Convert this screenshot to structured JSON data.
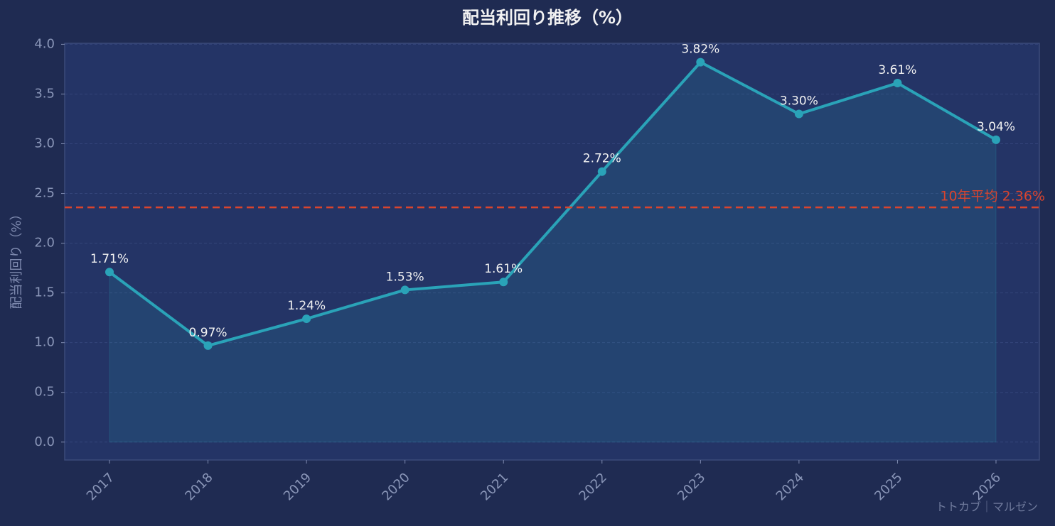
{
  "chart_data": {
    "type": "line",
    "title": "配当利回り推移（%）",
    "y_label": "配当利回り（%）",
    "categories": [
      "2017",
      "2018",
      "2019",
      "2020",
      "2021",
      "2022",
      "2023",
      "2024",
      "2025",
      "2026"
    ],
    "series": [
      {
        "name": "配当利回り",
        "color": "#2aa3b8",
        "values": [
          1.71,
          0.97,
          1.24,
          1.53,
          1.61,
          2.72,
          3.82,
          3.3,
          3.61,
          3.04
        ],
        "value_labels": [
          "1.71%",
          "0.97%",
          "1.24%",
          "1.53%",
          "1.61%",
          "2.72%",
          "3.82%",
          "3.30%",
          "3.61%",
          "3.04%"
        ]
      }
    ],
    "average": {
      "value": 2.36,
      "label": "10年平均 2.36%",
      "color": "#d9442e"
    },
    "ylim": [
      -0.18,
      4.01
    ],
    "yticks": [
      {
        "value": 0,
        "label": "0.0"
      },
      0.5,
      {
        "value": 1,
        "label": "1.0"
      },
      1.5,
      {
        "value": 2,
        "label": "2.0"
      },
      2.5,
      {
        "value": 3,
        "label": "3.0"
      },
      3.5,
      {
        "value": 4,
        "label": "4.0"
      }
    ],
    "grid": true,
    "watermark": "トトカブ｜マルゼン"
  }
}
